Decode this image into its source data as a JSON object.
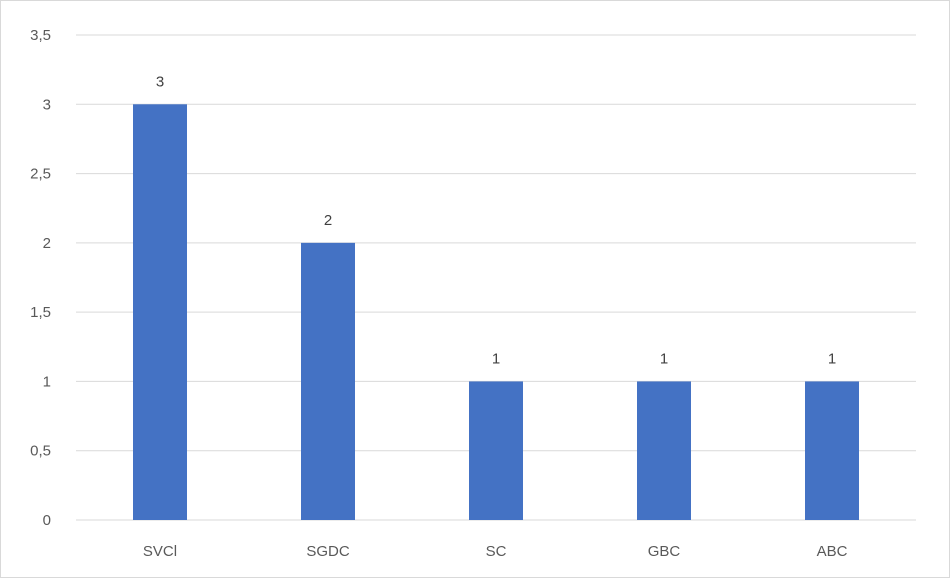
{
  "chart_data": {
    "type": "bar",
    "categories": [
      "SVCl",
      "SGDC",
      "SC",
      "GBC",
      "ABC"
    ],
    "values": [
      3,
      2,
      1,
      1,
      1
    ],
    "data_labels": [
      "3",
      "2",
      "1",
      "1",
      "1"
    ],
    "y_ticks": [
      0,
      0.5,
      1,
      1.5,
      2,
      2.5,
      3,
      3.5
    ],
    "y_tick_labels": [
      "0",
      "0,5",
      "1",
      "1,5",
      "2",
      "2,5",
      "3",
      "3,5"
    ],
    "ylim": [
      0,
      3.5
    ],
    "grid": true,
    "legend": "none",
    "bar_color": "#4472c4",
    "grid_color": "#d9d9d9"
  }
}
